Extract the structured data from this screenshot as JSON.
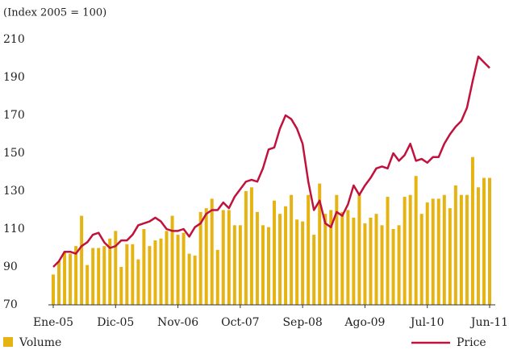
{
  "chart_data": {
    "type": "bar_line",
    "subtitle": "(Index  2005 = 100)",
    "categories": [
      "Ene-05",
      null,
      null,
      null,
      null,
      null,
      null,
      null,
      null,
      null,
      null,
      "Dic-05",
      null,
      null,
      null,
      null,
      null,
      null,
      null,
      null,
      null,
      null,
      "Nov-06",
      null,
      null,
      null,
      null,
      null,
      null,
      null,
      null,
      null,
      null,
      "Oct-07",
      null,
      null,
      null,
      null,
      null,
      null,
      null,
      null,
      null,
      null,
      "Sep-08",
      null,
      null,
      null,
      null,
      null,
      null,
      null,
      null,
      null,
      null,
      "Ago-09",
      null,
      null,
      null,
      null,
      null,
      null,
      null,
      null,
      null,
      null,
      "Jul-10",
      null,
      null,
      null,
      null,
      null,
      null,
      null,
      null,
      null,
      null,
      "Jun-11"
    ],
    "series": [
      {
        "name": "Volume",
        "kind": "bar",
        "color": "#e6b412",
        "values": [
          86,
          93,
          98,
          97,
          101,
          117,
          91,
          100,
          100,
          101,
          105,
          109,
          90,
          102,
          102,
          94,
          110,
          101,
          104,
          105,
          109,
          117,
          107,
          108,
          97,
          96,
          119,
          121,
          126,
          99,
          120,
          120,
          112,
          112,
          130,
          132,
          119,
          112,
          111,
          125,
          118,
          122,
          128,
          115,
          114,
          128,
          107,
          134,
          118,
          120,
          128,
          119,
          120,
          116,
          128,
          113,
          116,
          118,
          112,
          127,
          110,
          112,
          127,
          128,
          138,
          118,
          124,
          126,
          126,
          128,
          121,
          133,
          128,
          128,
          148,
          132,
          137,
          137
        ]
      },
      {
        "name": "Price",
        "kind": "line",
        "color": "#c0123c",
        "values": [
          90,
          93,
          98,
          98,
          97,
          101,
          103,
          107,
          108,
          103,
          100,
          101,
          104,
          104,
          107,
          112,
          113,
          114,
          116,
          114,
          110,
          109,
          109,
          110,
          106,
          111,
          113,
          118,
          120,
          120,
          124,
          121,
          127,
          131,
          135,
          136,
          135,
          142,
          152,
          153,
          163,
          170,
          168,
          163,
          155,
          135,
          120,
          125,
          113,
          111,
          119,
          117,
          123,
          133,
          128,
          133,
          137,
          142,
          143,
          142,
          150,
          146,
          149,
          155,
          146,
          147,
          145,
          148,
          148,
          155,
          160,
          164,
          167,
          174,
          188,
          201,
          198,
          195
        ]
      }
    ],
    "ylim": [
      70,
      210
    ],
    "yticks": [
      70,
      90,
      110,
      130,
      150,
      170,
      190,
      210
    ]
  }
}
